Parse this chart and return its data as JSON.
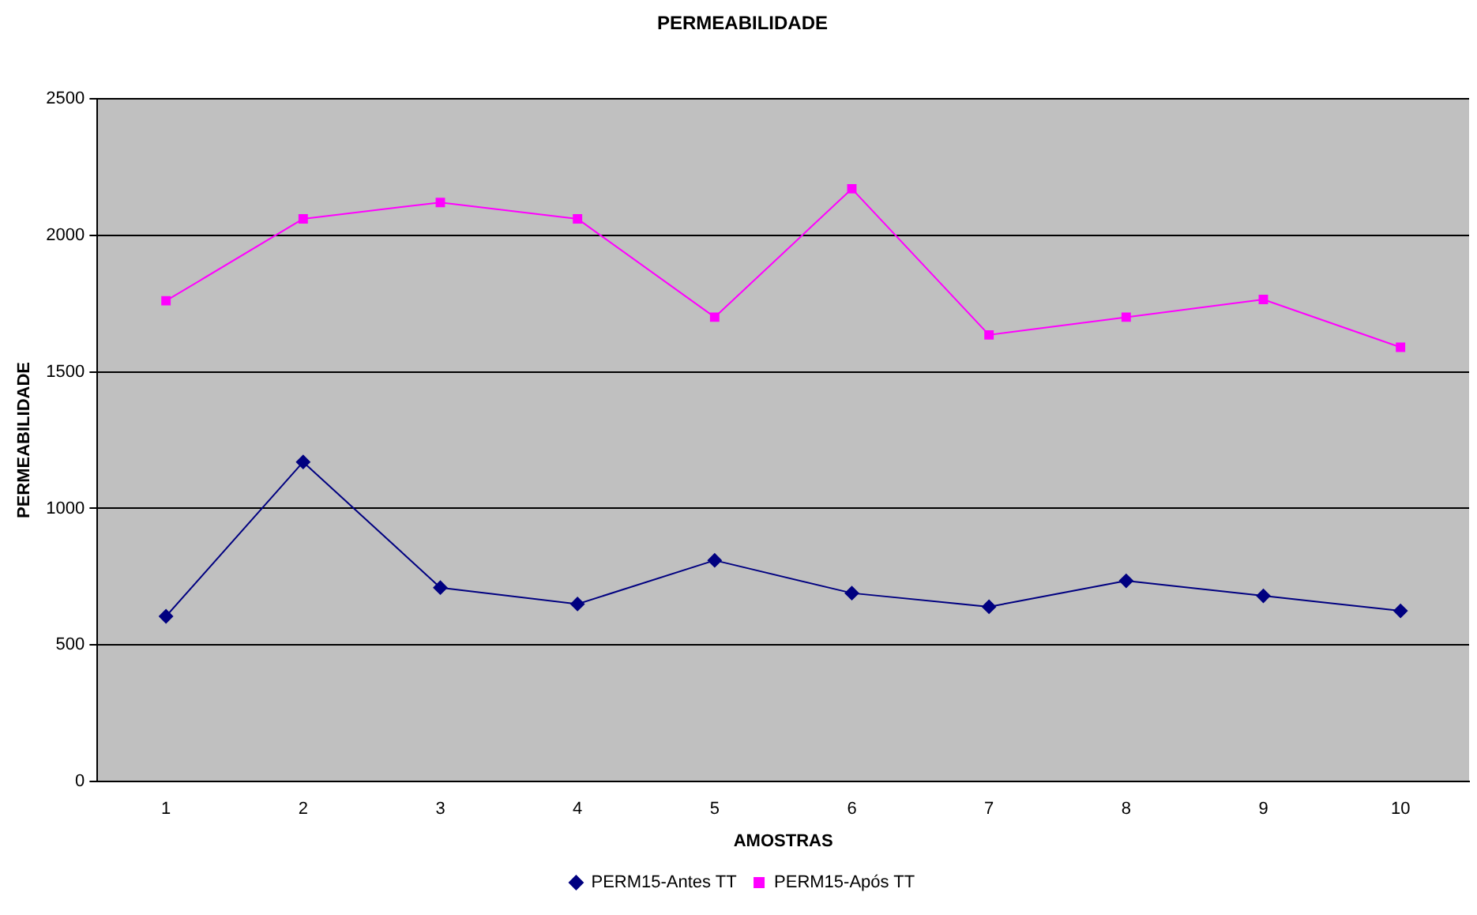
{
  "chart_data": {
    "type": "line",
    "title": "PERMEABILIDADE",
    "xlabel": "AMOSTRAS",
    "ylabel": "PERMEABILIDADE",
    "categories": [
      "1",
      "2",
      "3",
      "4",
      "5",
      "6",
      "7",
      "8",
      "9",
      "10"
    ],
    "series": [
      {
        "name": "PERM15-Antes TT",
        "color": "#000080",
        "marker": "diamond",
        "values": [
          605,
          1170,
          710,
          650,
          810,
          690,
          640,
          735,
          680,
          625
        ]
      },
      {
        "name": "PERM15-Após TT",
        "color": "#ff00ff",
        "marker": "square",
        "values": [
          1760,
          2060,
          2120,
          2060,
          1700,
          2170,
          1635,
          1700,
          1765,
          1590
        ]
      }
    ],
    "ylim": [
      0,
      2500
    ],
    "yticks": [
      0,
      500,
      1000,
      1500,
      2000,
      2500
    ],
    "grid": "y",
    "legend": "bottom",
    "line_style": "solid"
  }
}
